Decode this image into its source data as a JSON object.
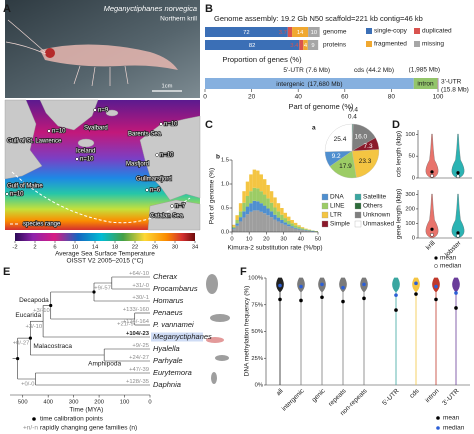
{
  "figure": {
    "panel_labels": [
      "A",
      "B",
      "C",
      "D",
      "E",
      "F"
    ],
    "panel_a": {
      "species": "Meganyctiphanes norvegica",
      "common_name": "Northern krill",
      "scale_bar": "1cm",
      "sites": [
        {
          "name": "Svalbard",
          "n": "n=9"
        },
        {
          "name": "Barents Sea",
          "n": "n=10"
        },
        {
          "name": "Gulf of St. Lawrence",
          "n": "n=10"
        },
        {
          "name": "Iceland",
          "n": "n=10"
        },
        {
          "name": "Masfjord",
          "n": "n=10"
        },
        {
          "name": "Gulf of Maine",
          "n": "n=10"
        },
        {
          "name": "Gullmarsfjord",
          "n": "n=6"
        },
        {
          "name": "Catalan Sea",
          "n": "n=7"
        }
      ],
      "range_legend": "species range",
      "colorbar": {
        "title": "Average Sea Surface Temperature",
        "subtitle": "OISST V2  2005–2015 (°C)",
        "lim": [
          -2,
          34
        ],
        "ticks": [
          -2,
          2,
          6,
          10,
          14,
          18,
          22,
          26,
          30,
          34
        ]
      }
    },
    "panel_b": {
      "title": "Genome assembly: 19.2 Gb N50 scaffold=221 kb contig=46 kb",
      "busco": {
        "categories": [
          "genome",
          "proteins"
        ],
        "series": [
          {
            "name": "single-copy",
            "color": "#3b6fb6",
            "values": [
              72,
              82
            ]
          },
          {
            "name": "duplicated",
            "color": "#d9534f",
            "values": [
              3.7,
              3.4
            ]
          },
          {
            "name": "fragmented",
            "color": "#f0a830",
            "values": [
              14,
              4
            ]
          },
          {
            "name": "missing",
            "color": "#a6a6a6",
            "values": [
              10,
              9
            ]
          }
        ],
        "xlim": [
          0,
          100
        ],
        "xlabel": "Proportion of genes (%)"
      },
      "composition": {
        "segments": [
          {
            "name": "intergenic",
            "label": "(17,680 Mb)",
            "mb": 17680,
            "color": "#86b0df"
          },
          {
            "name": "intron",
            "label": "(1,985 Mb)",
            "mb": 1985,
            "color": "#93c56b"
          },
          {
            "name": "5'-UTR",
            "label": "(7.6 Mb)",
            "mb": 7.6,
            "color": "#3aa6a0"
          },
          {
            "name": "cds",
            "label": "(44.2 Mb)",
            "mb": 44.2,
            "color": "#f4c542"
          },
          {
            "name": "3'-UTR",
            "label": "(15.8 Mb)",
            "mb": 15.8,
            "color": "#6a3d9a"
          }
        ],
        "xlim": [
          0,
          100
        ],
        "xticks": [
          0,
          20,
          40,
          60,
          80,
          100
        ],
        "xlabel": "Part of genome (%)"
      }
    },
    "panel_c": {
      "pie_label": "a",
      "classes": [
        {
          "name": "DNA",
          "color": "#4f8fcf",
          "value": 9.2
        },
        {
          "name": "LINE",
          "color": "#9ccc65",
          "value": 17.9
        },
        {
          "name": "LTR",
          "color": "#f4c542",
          "value": 23.3
        },
        {
          "name": "Simple",
          "color": "#8b1a2b",
          "value": 7.3
        },
        {
          "name": "Satellite",
          "color": "#3aa6a0",
          "value": 0.4
        },
        {
          "name": "Others",
          "color": "#2e6b3a",
          "value": 0.4
        },
        {
          "name": "Unknown",
          "color": "#7f7f7f",
          "value": 16,
          "label": "16.0"
        },
        {
          "name": "Unmasked",
          "color": "#ffffff",
          "value": 25.4
        }
      ],
      "hist": {
        "label": "b",
        "bins": [
          0,
          2,
          4,
          6,
          8,
          10,
          12,
          14,
          16,
          18,
          20,
          22,
          24,
          26,
          28,
          30,
          32,
          34,
          36,
          38,
          40,
          42,
          44,
          46,
          48,
          50
        ],
        "series": [
          {
            "color": "#9e9e9e",
            "values": [
              0.06,
              0.13,
              0.22,
              0.3,
              0.37,
              0.42,
              0.45,
              0.45,
              0.42,
              0.39,
              0.35,
              0.31,
              0.26,
              0.22,
              0.18,
              0.15,
              0.12,
              0.09,
              0.07,
              0.05,
              0.04,
              0.03,
              0.02,
              0.01,
              0.01
            ]
          },
          {
            "color": "#4f8fcf",
            "values": [
              0.02,
              0.05,
              0.09,
              0.13,
              0.16,
              0.18,
              0.2,
              0.19,
              0.18,
              0.16,
              0.14,
              0.12,
              0.1,
              0.08,
              0.07,
              0.05,
              0.04,
              0.03,
              0.02,
              0.02,
              0.01,
              0.01,
              0.01,
              0.01,
              0
            ]
          },
          {
            "color": "#9ccc65",
            "values": [
              0.03,
              0.07,
              0.12,
              0.18,
              0.22,
              0.25,
              0.27,
              0.27,
              0.25,
              0.23,
              0.21,
              0.18,
              0.15,
              0.13,
              0.11,
              0.09,
              0.07,
              0.06,
              0.05,
              0.04,
              0.03,
              0.02,
              0.01,
              0.01,
              0.01
            ]
          },
          {
            "color": "#f4c542",
            "values": [
              0.04,
              0.1,
              0.17,
              0.24,
              0.3,
              0.35,
              0.38,
              0.37,
              0.35,
              0.32,
              0.28,
              0.24,
              0.21,
              0.17,
              0.14,
              0.11,
              0.09,
              0.07,
              0.05,
              0.03,
              0.02,
              0.01,
              0.01,
              0,
              0
            ]
          }
        ],
        "xlim": [
          0,
          50
        ],
        "xticks": [
          0,
          10,
          20,
          30,
          40,
          50
        ],
        "ylim": [
          0,
          1.5
        ],
        "yticks": [
          {
            "value": 0,
            "label": "0.0"
          },
          0.5,
          {
            "value": 1,
            "label": "1.0"
          },
          1.5
        ],
        "xlabel": "Kimura-2 substitution rate (%/bp)",
        "ylabel": "Part of genome (%)"
      }
    },
    "panel_d": {
      "categories": [
        "krill",
        "lobster"
      ],
      "colors": [
        "#e8736b",
        "#2bb3b3"
      ],
      "plots": [
        {
          "ylabel": "cds length (kbp)",
          "ylim": [
            0,
            110
          ],
          "yticks": [
            0,
            50,
            100
          ],
          "mean": [
            14,
            12
          ],
          "median": [
            5,
            4
          ]
        },
        {
          "ylabel": "gene length (kbp)",
          "ylim": [
            0,
            330
          ],
          "yticks": [
            0,
            100,
            200,
            300
          ],
          "mean": [
            60,
            35
          ],
          "median": [
            22,
            15
          ]
        }
      ],
      "legend": [
        "mean",
        "median"
      ]
    },
    "panel_e": {
      "taxa": [
        "Cherax",
        "Procambarus",
        "Homarus",
        "Penaeus",
        "P. vannamei",
        "Meganyctiphanes",
        "Hyalella",
        "Parhyale",
        "Eurytemora",
        "Daphnia"
      ],
      "tip_changes": [
        "+64/-10",
        "+31/-0",
        "+30/-1",
        "+133/-160",
        "+124/-164",
        "+104/-23",
        "+9/-25",
        "+24/-27",
        "+47/-39",
        "+128/-35"
      ],
      "node_changes": [
        "+9/-57",
        "+21/-9",
        "+3/-10",
        "+3/-10",
        "+0/-27",
        "+0/-0"
      ],
      "clades": [
        "Decapoda",
        "Eucarida",
        "Malacostraca",
        "Amphipoda"
      ],
      "xlim": [
        550,
        0
      ],
      "xticks": [
        500,
        400,
        300,
        200,
        100,
        0
      ],
      "xlabel": "Time (MYA)",
      "legend": {
        "calibration": "time calibration points",
        "key": "+n/-n",
        "changes": "rapidly changing gene families (n)"
      }
    },
    "panel_f": {
      "categories": [
        "all",
        "intergenic",
        "genic",
        "repeats",
        "non-repeats",
        "5'-UTR",
        "cds",
        "intron",
        "3'-UTR"
      ],
      "colors": [
        "#222222",
        "#7a7a7a",
        "#7a7a7a",
        "#7a7a7a",
        "#7a7a7a",
        "#3aa6a0",
        "#f4c542",
        "#c0392b",
        "#6a3d9a"
      ],
      "mean": [
        80,
        79,
        82,
        78,
        81,
        70,
        85,
        80,
        72
      ],
      "median": [
        93,
        92,
        94,
        91,
        94,
        84,
        95,
        92,
        86
      ],
      "ylim": [
        0,
        100
      ],
      "yticks": [
        {
          "value": 0,
          "label": "0%"
        },
        {
          "value": 25,
          "label": "25%"
        },
        {
          "value": 50,
          "label": "50%"
        },
        {
          "value": 75,
          "label": "75%"
        },
        {
          "value": 100,
          "label": "100%"
        }
      ],
      "ylabel": "DNA methylation frequency (%)",
      "legend": [
        "mean",
        "median"
      ]
    }
  }
}
